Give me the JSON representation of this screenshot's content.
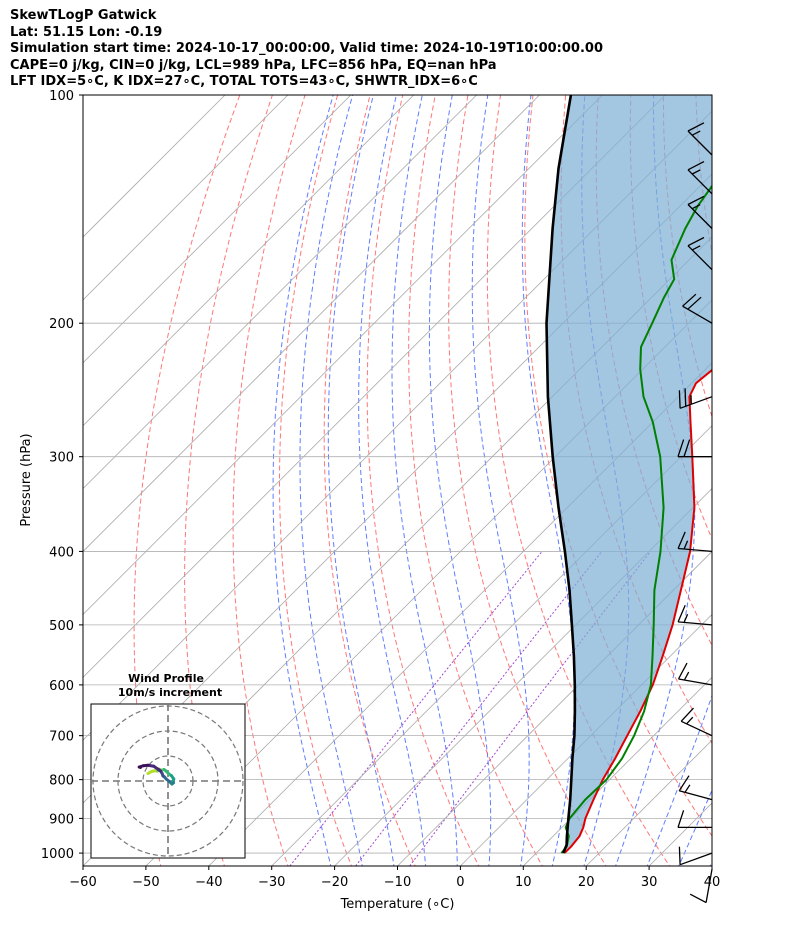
{
  "header": {
    "line1": "SkewTLogP Gatwick",
    "line2": "Lat: 51.15   Lon: -0.19",
    "line3": "Simulation start time: 2024-10-17_00:00:00, Valid time: 2024-10-19T10:00:00.00",
    "line4": "CAPE=0 j/kg, CIN=0 j/kg, LCL=989 hPa, LFC=856 hPa, EQ=nan hPa",
    "line5": "LFT IDX=5∘C, K IDX=27∘C, TOTAL TOTS=43∘C, SHWTR_IDX=6∘C"
  },
  "colors": {
    "temperature": "#e00000",
    "dewpoint": "#008000",
    "parcel": "#000000",
    "shading": "#7fb0d6",
    "dry_adiabat": "#ff5555",
    "moist_adiabat": "#4466ff",
    "mixing_ratio": "#9933cc",
    "isotherm": "#aaaaaa"
  },
  "chart_data": [
    {
      "type": "line",
      "name": "skew-t",
      "xlabel": "Temperature (∘C)",
      "ylabel": "Pressure (hPa)",
      "xlim": [
        -60,
        40
      ],
      "ylim": [
        1040,
        100
      ],
      "y_scale": "log",
      "skew": "45 degrees",
      "x_ticks": [
        "−60",
        "−50",
        "−40",
        "−30",
        "−20",
        "−10",
        "0",
        "10",
        "20",
        "30",
        "40"
      ],
      "y_ticks": [
        "1000",
        "900",
        "800",
        "700",
        "600",
        "500",
        "400",
        "300",
        "200",
        "100"
      ],
      "grid": true,
      "series": [
        {
          "name": "temperature",
          "points": [
            [
              1000,
              14.5
            ],
            [
              980,
              14.5
            ],
            [
              950,
              14.2
            ],
            [
              925,
              13.4
            ],
            [
              900,
              12.3
            ],
            [
              850,
              10.6
            ],
            [
              800,
              8.9
            ],
            [
              750,
              7.5
            ],
            [
              700,
              5.8
            ],
            [
              650,
              4.0
            ],
            [
              600,
              1.8
            ],
            [
              550,
              -1.2
            ],
            [
              500,
              -4.6
            ],
            [
              450,
              -8.8
            ],
            [
              400,
              -13.5
            ],
            [
              350,
              -19.8
            ],
            [
              300,
              -28.2
            ],
            [
              270,
              -34.0
            ],
            [
              250,
              -38.2
            ],
            [
              240,
              -39.3
            ],
            [
              220,
              -38.3
            ],
            [
              205,
              -38.4
            ],
            [
              200,
              -39.0
            ],
            [
              190,
              -40.1
            ],
            [
              175,
              -42.2
            ],
            [
              160,
              -44.6
            ],
            [
              150,
              -46.6
            ],
            [
              140,
              -49.2
            ],
            [
              130,
              -52.4
            ],
            [
              120,
              -55.8
            ],
            [
              115,
              -57.7
            ],
            [
              110,
              -60.1
            ],
            [
              105,
              -62.5
            ],
            [
              100,
              -64.5
            ]
          ]
        },
        {
          "name": "dewpoint",
          "points": [
            [
              1000,
              14.0
            ],
            [
              980,
              13.8
            ],
            [
              950,
              12.5
            ],
            [
              925,
              10.6
            ],
            [
              900,
              9.8
            ],
            [
              850,
              9.3
            ],
            [
              800,
              9.5
            ],
            [
              750,
              8.6
            ],
            [
              700,
              6.9
            ],
            [
              650,
              4.6
            ],
            [
              600,
              1.5
            ],
            [
              550,
              -2.8
            ],
            [
              500,
              -7.6
            ],
            [
              450,
              -13.0
            ],
            [
              400,
              -18.2
            ],
            [
              350,
              -24.7
            ],
            [
              300,
              -33.3
            ],
            [
              270,
              -40.0
            ],
            [
              250,
              -45.5
            ],
            [
              230,
              -50.4
            ],
            [
              215,
              -53.8
            ],
            [
              200,
              -55.8
            ],
            [
              185,
              -58.0
            ],
            [
              175,
              -59.3
            ],
            [
              165,
              -62.8
            ],
            [
              150,
              -65.6
            ],
            [
              140,
              -67.2
            ],
            [
              130,
              -68.3
            ],
            [
              120,
              -68.6
            ],
            [
              110,
              -68.4
            ],
            [
              100,
              -68.6
            ]
          ]
        },
        {
          "name": "parcel",
          "points": [
            [
              1000,
              14.3
            ],
            [
              975,
              13.5
            ],
            [
              950,
              12.2
            ],
            [
              900,
              9.6
            ],
            [
              850,
              6.9
            ],
            [
              800,
              3.9
            ],
            [
              750,
              0.7
            ],
            [
              700,
              -2.6
            ],
            [
              650,
              -6.4
            ],
            [
              600,
              -10.6
            ],
            [
              550,
              -15.3
            ],
            [
              500,
              -20.6
            ],
            [
              450,
              -26.5
            ],
            [
              400,
              -33.4
            ],
            [
              350,
              -41.4
            ],
            [
              300,
              -50.4
            ],
            [
              250,
              -60.7
            ],
            [
              200,
              -72.6
            ],
            [
              150,
              -86.7
            ],
            [
              125,
              -95.3
            ],
            [
              100,
              -105.0
            ]
          ]
        }
      ],
      "wind_barbs": [
        {
          "p": 1050,
          "speed_kt": 10,
          "dir_deg": 190
        },
        {
          "p": 1000,
          "speed_kt": 10,
          "dir_deg": 250
        },
        {
          "p": 925,
          "speed_kt": 10,
          "dir_deg": 270
        },
        {
          "p": 850,
          "speed_kt": 15,
          "dir_deg": 285
        },
        {
          "p": 700,
          "speed_kt": 15,
          "dir_deg": 295
        },
        {
          "p": 600,
          "speed_kt": 15,
          "dir_deg": 280
        },
        {
          "p": 500,
          "speed_kt": 15,
          "dir_deg": 275
        },
        {
          "p": 400,
          "speed_kt": 15,
          "dir_deg": 275
        },
        {
          "p": 300,
          "speed_kt": 20,
          "dir_deg": 270
        },
        {
          "p": 250,
          "speed_kt": 25,
          "dir_deg": 250
        },
        {
          "p": 200,
          "speed_kt": 20,
          "dir_deg": 300
        },
        {
          "p": 170,
          "speed_kt": 15,
          "dir_deg": 315
        },
        {
          "p": 150,
          "speed_kt": 15,
          "dir_deg": 315
        },
        {
          "p": 135,
          "speed_kt": 15,
          "dir_deg": 315
        },
        {
          "p": 120,
          "speed_kt": 15,
          "dir_deg": 315
        }
      ]
    },
    {
      "type": "line",
      "name": "hodograph",
      "title": "Wind Profile",
      "subtitle": "10m/s increment",
      "ring_spacing_ms": 10,
      "rings": 3,
      "series": [
        {
          "name": "hodograph trace",
          "points": [
            [
              0,
              3
            ],
            [
              1.2,
              3.7
            ],
            [
              2.6,
              4.1
            ],
            [
              3.8,
              4.0
            ],
            [
              4.4,
              4.7
            ],
            [
              5.4,
              4.3
            ],
            [
              6.4,
              4.6
            ],
            [
              7.2,
              4.0
            ],
            [
              8.4,
              2.8
            ],
            [
              9.4,
              2.1
            ],
            [
              10.3,
              0.8
            ],
            [
              10.0,
              -0.2
            ],
            [
              10.2,
              -0.7
            ],
            [
              9.6,
              -1.2
            ],
            [
              9.3,
              -0.9
            ],
            [
              8.4,
              -0.1
            ],
            [
              7.3,
              0.8
            ],
            [
              6.5,
              1.7
            ],
            [
              6.0,
              2.0
            ],
            [
              5.8,
              2.6
            ],
            [
              5.6,
              3.1
            ],
            [
              5.0,
              4.0
            ],
            [
              4.2,
              4.6
            ],
            [
              2.3,
              5.9
            ],
            [
              0,
              6.3
            ],
            [
              -1.9,
              6.1
            ],
            [
              -3.5,
              5.6
            ],
            [
              -3.0,
              5.4
            ]
          ]
        }
      ]
    }
  ]
}
